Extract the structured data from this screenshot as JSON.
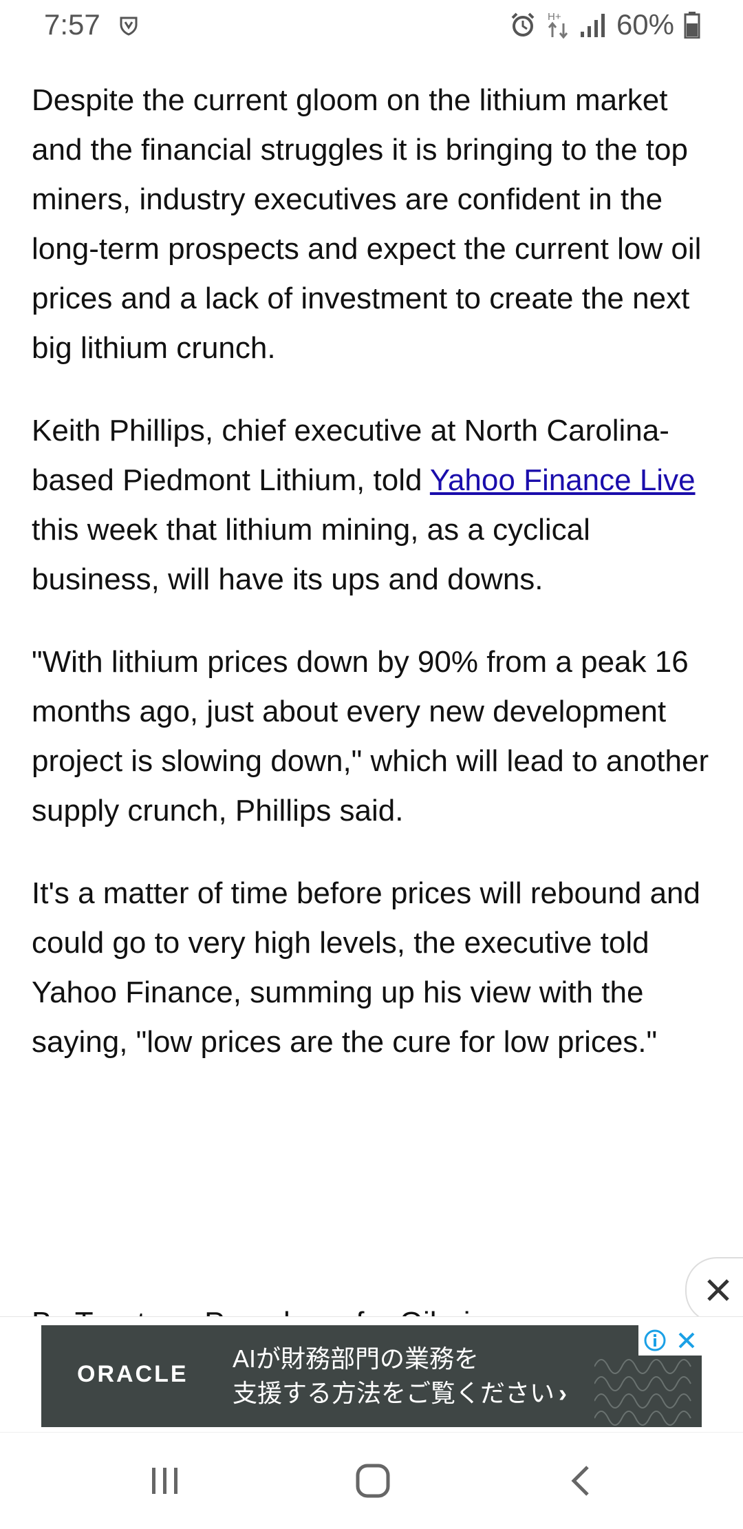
{
  "status_bar": {
    "time": "7:57",
    "battery_percent": "60%",
    "network_label": "H+",
    "icons": [
      "shield-icon",
      "alarm-icon",
      "data-transfer-icon",
      "signal-icon",
      "battery-icon"
    ]
  },
  "article": {
    "paragraphs": [
      "Despite the current gloom on the lithium market and the financial struggles it is bringing to the top miners, industry executives are confident in the long-term prospects and expect the current low oil prices and a lack of investment to create the next big lithium crunch.",
      "\"With lithium prices down by 90% from a peak 16 months ago, just about every new development project is slowing down,\" which will lead to another supply crunch, Phillips said.",
      "It's a matter of time before prices will rebound and could go to very high levels, the executive told Yahoo Finance, summing up his view with the saying, \"low prices are the cure for low prices.\""
    ],
    "paragraph2": {
      "before_link": "Keith Phillips, chief executive at North Carolina-based Piedmont Lithium, told ",
      "link_text": "Yahoo Finance Live",
      "after_link": " this week that lithium mining, as a cyclical business, will have its ups and downs."
    },
    "byline_partial": "By Tsvetana Paraskova for Oilprice.com"
  },
  "ad": {
    "brand": "ORACLE",
    "line1": "AIが財務部門の業務を",
    "line2": "支援する方法をご覧ください",
    "chevron": "›",
    "bg_color": "#3f4645"
  },
  "colors": {
    "link": "#1a0dab",
    "text": "#111111",
    "ad_icon": "#1aa0e6"
  },
  "nav_bar": {
    "icons": [
      "recent-apps-icon",
      "home-icon",
      "back-icon"
    ]
  }
}
